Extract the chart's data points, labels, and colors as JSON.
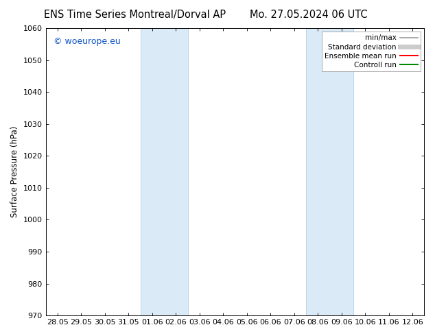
{
  "title_left": "ENS Time Series Montreal/Dorval AP",
  "title_right": "Mo. 27.05.2024 06 UTC",
  "ylabel": "Surface Pressure (hPa)",
  "ylim": [
    970,
    1060
  ],
  "yticks": [
    970,
    980,
    990,
    1000,
    1010,
    1020,
    1030,
    1040,
    1050,
    1060
  ],
  "xtick_labels": [
    "28.05",
    "29.05",
    "30.05",
    "31.05",
    "01.06",
    "02.06",
    "03.06",
    "04.06",
    "05.06",
    "06.06",
    "07.06",
    "08.06",
    "09.06",
    "10.06",
    "11.06",
    "12.06"
  ],
  "shaded_bands": [
    {
      "x_start_label": "01.06",
      "x_end_label": "03.06"
    },
    {
      "x_start_label": "08.06",
      "x_end_label": "10.06"
    }
  ],
  "shaded_color": "#daeaf7",
  "shaded_edge_color": "#b0cfe8",
  "watermark_text": "© woeurope.eu",
  "watermark_color": "#1155cc",
  "legend_items": [
    {
      "label": "min/max",
      "color": "#999999",
      "lw": 1.2,
      "style": "solid"
    },
    {
      "label": "Standard deviation",
      "color": "#cccccc",
      "lw": 5,
      "style": "solid"
    },
    {
      "label": "Ensemble mean run",
      "color": "#ff0000",
      "lw": 1.5,
      "style": "solid"
    },
    {
      "label": "Controll run",
      "color": "#008800",
      "lw": 1.5,
      "style": "solid"
    }
  ],
  "bg_color": "#ffffff",
  "plot_bg_color": "#ffffff",
  "title_fontsize": 10.5,
  "axis_fontsize": 8.5,
  "tick_fontsize": 8,
  "watermark_fontsize": 9
}
